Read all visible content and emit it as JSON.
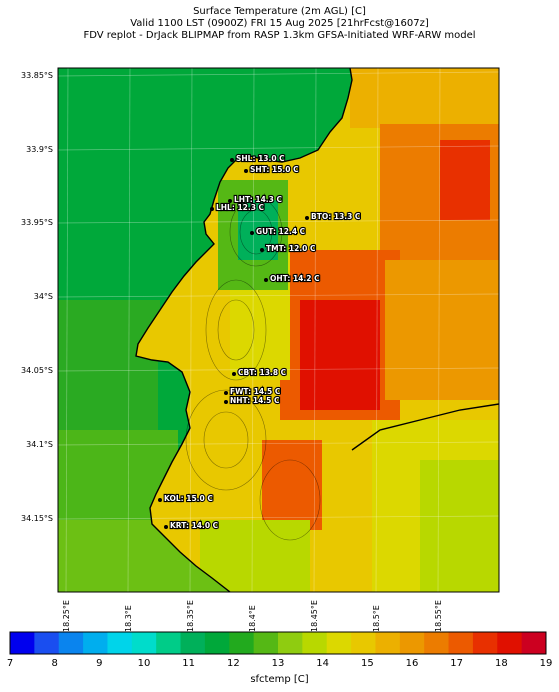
{
  "header": {
    "line1": "Surface Temperature (2m AGL) [C]",
    "line2": "Valid 1100 LST (0900Z) FRI 15 Aug 2025 [21hrFcst@1607z]",
    "line3": "FDV replot - DrJack BLIPMAP from RASP 1.3km GFSA-Initiated WRF-ARW model"
  },
  "lat_labels": [
    "33.85°S",
    "33.9°S",
    "33.95°S",
    "34°S",
    "34.05°S",
    "34.1°S",
    "34.15°S"
  ],
  "lon_labels": [
    "18.25°E",
    "18.3°E",
    "18.35°E",
    "18.4°E",
    "18.45°E",
    "18.5°E",
    "18.55°E"
  ],
  "stations": [
    {
      "label": "SHL: 13.0 C"
    },
    {
      "label": "SHT: 15.0 C"
    },
    {
      "label": "LHT: 14.3 C"
    },
    {
      "label": "LHL: 12.3 C"
    },
    {
      "label": "BTO: 13.3 C"
    },
    {
      "label": "GUT: 12.4 C"
    },
    {
      "label": "TMT: 12.0 C"
    },
    {
      "label": "OHT: 14.2 C"
    },
    {
      "label": "CBT: 13.8 C"
    },
    {
      "label": "FWT: 14.5 C"
    },
    {
      "label": "NHT: 14.5 C"
    },
    {
      "label": "KOL: 15.0 C"
    },
    {
      "label": "KRT: 14.0 C"
    }
  ],
  "colorbar": {
    "label": "sfctemp [C]",
    "ticks": [
      "7",
      "8",
      "9",
      "10",
      "11",
      "12",
      "13",
      "14",
      "15",
      "16",
      "17",
      "18",
      "19"
    ],
    "colors": [
      "#0000ee",
      "#1a4ef0",
      "#0a84ee",
      "#00aeee",
      "#00d4ea",
      "#00dccb",
      "#00cc88",
      "#00b05a",
      "#00a83a",
      "#22aa1e",
      "#55b815",
      "#8fcc10",
      "#b8d800",
      "#dcd800",
      "#e8c800",
      "#ecb000",
      "#ec9800",
      "#ec7c00",
      "#ec5a00",
      "#e83000",
      "#e01000",
      "#cc0020"
    ]
  },
  "legend_colors": {
    "ocean": "#00a83a",
    "coast": "#000000"
  }
}
